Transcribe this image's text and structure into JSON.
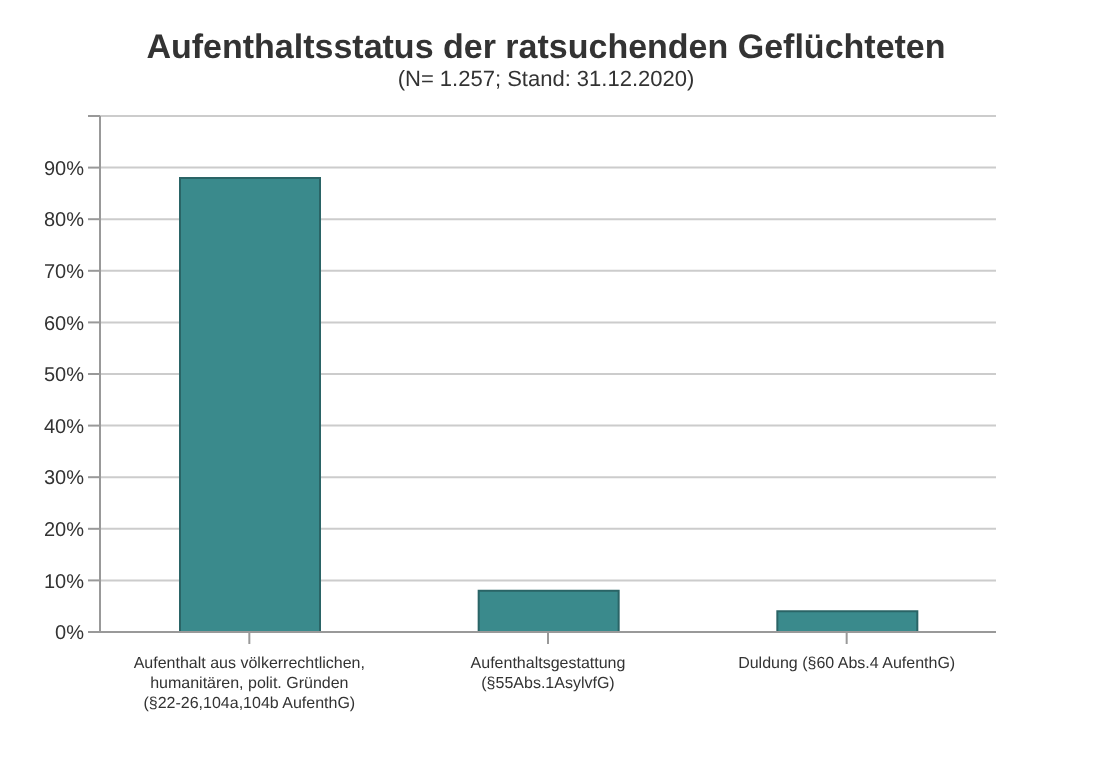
{
  "chart_data": {
    "type": "bar",
    "title": "Aufenthaltsstatus der ratsuchenden Geflüchteten",
    "subtitle": "(N= 1.257; Stand: 31.12.2020)",
    "categories": [
      "Aufenthalt aus völkerrechtlichen, humanitären, polit. Gründen (§22-26,104a,104b AufenthG)",
      "Aufenthaltsgestattung (§55Abs.1AsylvfG)",
      "Duldung (§60 Abs.4 AufenthG)"
    ],
    "values": [
      88,
      8,
      4
    ],
    "color": "#3a8a8c",
    "ylim": [
      0,
      100
    ],
    "yticks": [
      {
        "value": 0,
        "label": "0%"
      },
      {
        "value": 10,
        "label": "10%"
      },
      {
        "value": 20,
        "label": "20%"
      },
      {
        "value": 30,
        "label": "30%"
      },
      {
        "value": 40,
        "label": "40%"
      },
      {
        "value": 50,
        "label": "50%"
      },
      {
        "value": 60,
        "label": "60%"
      },
      {
        "value": 70,
        "label": "70%"
      },
      {
        "value": 80,
        "label": "80%"
      },
      {
        "value": 90,
        "label": "90%"
      },
      {
        "value": 100,
        "label": null
      }
    ],
    "grid": "y"
  }
}
